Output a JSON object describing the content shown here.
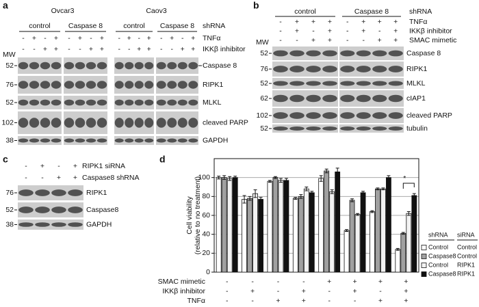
{
  "panel_a": {
    "label": "a",
    "cell_lines": [
      "Ovcar3",
      "Caov3"
    ],
    "shrna_label": "shRNA",
    "groups": [
      "control",
      "Caspase 8",
      "control",
      "Caspase 8"
    ],
    "treatments": [
      {
        "label": "TNFα",
        "signs": [
          "-",
          "+",
          "-",
          "+",
          "-",
          "+",
          "-",
          "+",
          "-",
          "+",
          "-",
          "+",
          "-",
          "+",
          "-",
          "+"
        ]
      },
      {
        "label": "IKKβ inhibitor",
        "signs": [
          "-",
          "-",
          "+",
          "+",
          "-",
          "-",
          "+",
          "+",
          "-",
          "-",
          "+",
          "+",
          "-",
          "-",
          "+",
          "+"
        ]
      }
    ],
    "mw_label": "MW",
    "mw": [
      52,
      76,
      52,
      102,
      38
    ],
    "bands": [
      "Caspase 8",
      "RIPK1",
      "MLKL",
      "cleaved PARP",
      "GAPDH"
    ]
  },
  "panel_b": {
    "label": "b",
    "shrna_label": "shRNA",
    "groups": [
      "control",
      "Caspase 8"
    ],
    "treatments": [
      {
        "label": "TNFα",
        "signs": [
          "-",
          "+",
          "+",
          "+",
          "-",
          "+",
          "+",
          "+"
        ]
      },
      {
        "label": "IKKβ inhibitor",
        "signs": [
          "-",
          "+",
          "-",
          "+",
          "-",
          "+",
          "-",
          "+"
        ]
      },
      {
        "label": "SMAC mimetic",
        "signs": [
          "-",
          "-",
          "+",
          "+",
          "-",
          "-",
          "+",
          "+"
        ]
      }
    ],
    "mw_label": "MW",
    "mw": [
      52,
      76,
      52,
      62,
      102,
      52
    ],
    "bands": [
      "Caspase 8",
      "RIPK1",
      "MLKL",
      "cIAP1",
      "cleaved PARP",
      "tubulin"
    ]
  },
  "panel_c": {
    "label": "c",
    "treatments": [
      {
        "label": "RIPK1 siRNA",
        "signs": [
          "-",
          "+",
          "-",
          "+"
        ]
      },
      {
        "label": "Caspase8 shRNA",
        "signs": [
          "-",
          "-",
          "+",
          "+"
        ]
      }
    ],
    "mw": [
      76,
      52,
      38
    ],
    "bands": [
      "RIPK1",
      "Caspase8",
      "GAPDH"
    ]
  },
  "chart_data": {
    "type": "bar",
    "label": "d",
    "ylabel": [
      "Cell viability",
      "(relative to no treatment)"
    ],
    "ylim": [
      0,
      120
    ],
    "yticks": [
      0,
      20,
      40,
      60,
      80,
      100
    ],
    "grid": true,
    "conditions": [
      {
        "label": "SMAC mimetic",
        "signs": [
          "-",
          "-",
          "-",
          "-",
          "+",
          "+",
          "+",
          "+"
        ]
      },
      {
        "label": "IKKβ inhibitor",
        "signs": [
          "-",
          "+",
          "-",
          "+",
          "-",
          "+",
          "-",
          "+"
        ]
      },
      {
        "label": "TNFα",
        "signs": [
          "-",
          "-",
          "+",
          "+",
          "-",
          "-",
          "+",
          "+"
        ]
      }
    ],
    "legend_titles": [
      "shRNA",
      "siRNA"
    ],
    "series": [
      {
        "name": "Control",
        "sirna": "Control",
        "color": "#ffffff",
        "values": [
          100,
          77,
          96,
          78,
          99,
          44,
          64,
          24
        ],
        "errors": [
          1.5,
          4,
          1,
          1,
          3,
          1,
          1,
          1
        ]
      },
      {
        "name": "Caspase8",
        "sirna": "Control",
        "color": "#a0a0a0",
        "values": [
          100,
          78,
          100,
          80,
          107,
          76,
          88,
          41
        ],
        "errors": [
          2,
          2,
          1,
          2,
          2,
          1.5,
          1,
          1
        ]
      },
      {
        "name": "Control",
        "sirna": "RIPK1",
        "color": "#f2f2f2",
        "values": [
          99,
          83,
          97,
          88,
          85,
          61,
          88,
          62
        ],
        "errors": [
          2,
          4,
          2,
          2,
          2,
          1,
          1,
          2
        ]
      },
      {
        "name": "Caspase8",
        "sirna": "RIPK1",
        "color": "#111111",
        "values": [
          100,
          77,
          97,
          84,
          106,
          84,
          100,
          81
        ],
        "errors": [
          1.5,
          2,
          2,
          1.5,
          4,
          1.5,
          2,
          2
        ]
      }
    ],
    "annotation": "*"
  }
}
